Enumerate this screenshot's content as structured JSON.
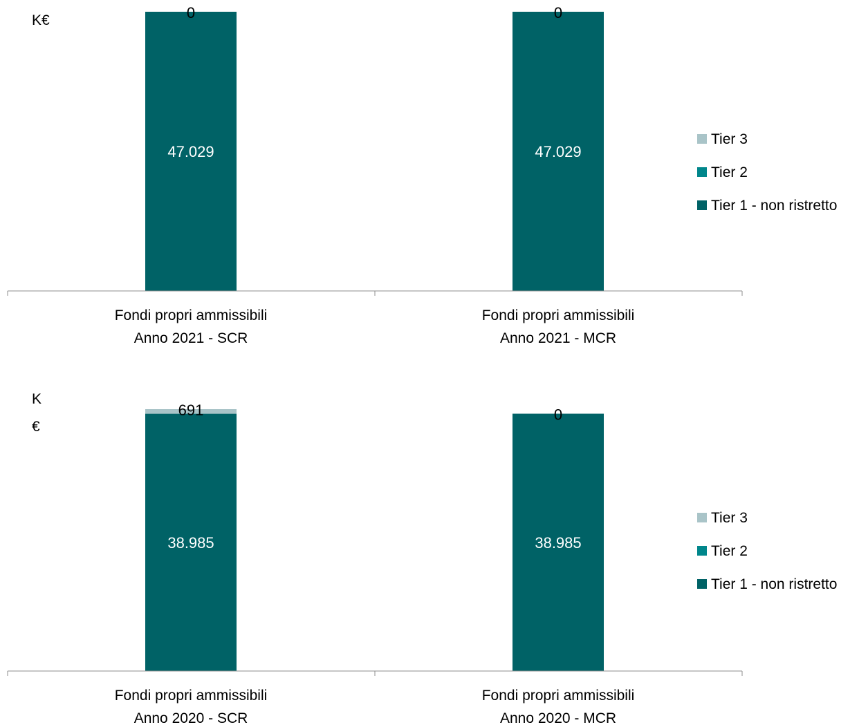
{
  "chart_data": [
    {
      "type": "bar",
      "stacked": true,
      "unit_label": "K€",
      "categories": [
        [
          "Fondi propri ammissibili",
          "Anno 2021 - SCR"
        ],
        [
          "Fondi propri ammissibili",
          "Anno 2021 - MCR"
        ]
      ],
      "series": [
        {
          "name": "Tier 1 - non ristretto",
          "values": [
            47029,
            47029
          ],
          "labels": [
            "47.029",
            "47.029"
          ],
          "color": "#006266"
        },
        {
          "name": "Tier 2",
          "values": [
            0,
            0
          ],
          "labels": [
            "",
            ""
          ],
          "color": "#00868B"
        },
        {
          "name": "Tier 3",
          "values": [
            0,
            0
          ],
          "labels": [
            "0",
            "0"
          ],
          "color": "#A9C4C8"
        }
      ],
      "legend_order": [
        "Tier 3",
        "Tier 2",
        "Tier 1 - non ristretto"
      ],
      "legend_position": "right",
      "grid": false
    },
    {
      "type": "bar",
      "stacked": true,
      "unit_label": [
        "K",
        "€"
      ],
      "categories": [
        [
          "Fondi propri ammissibili",
          "Anno 2020 - SCR"
        ],
        [
          "Fondi propri ammissibili",
          "Anno 2020 - MCR"
        ]
      ],
      "series": [
        {
          "name": "Tier 1 - non ristretto",
          "values": [
            38985,
            38985
          ],
          "labels": [
            "38.985",
            "38.985"
          ],
          "color": "#006266"
        },
        {
          "name": "Tier 2",
          "values": [
            0,
            0
          ],
          "labels": [
            "",
            ""
          ],
          "color": "#00868B"
        },
        {
          "name": "Tier 3",
          "values": [
            691,
            0
          ],
          "labels": [
            "691",
            "0"
          ],
          "color": "#A9C4C8"
        }
      ],
      "legend_order": [
        "Tier 3",
        "Tier 2",
        "Tier 1 - non ristretto"
      ],
      "legend_position": "right",
      "grid": false
    }
  ]
}
